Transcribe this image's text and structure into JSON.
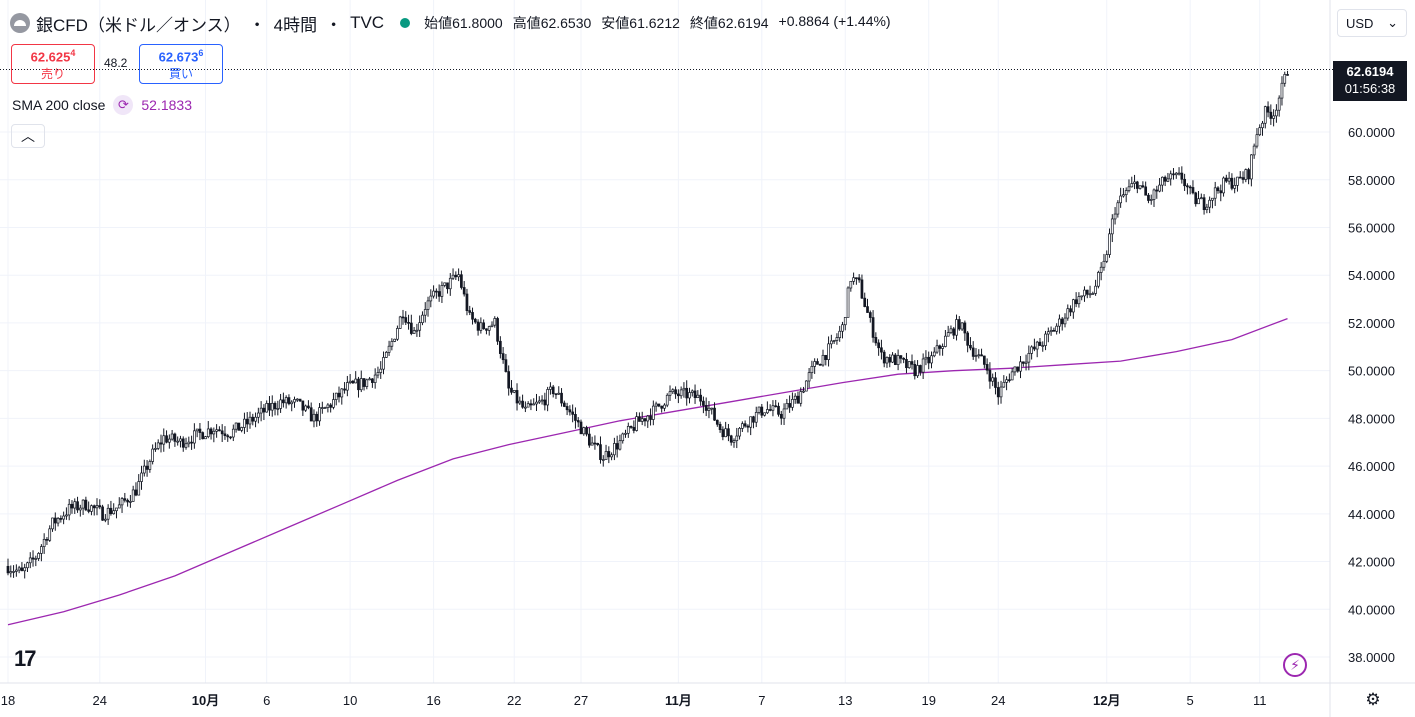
{
  "header": {
    "title": "銀CFD（米ドル／オンス）",
    "sep1": "・",
    "interval": "4時間",
    "sep2": "・",
    "source": "TVC",
    "ohlc": {
      "open_label": "始値",
      "open": "61.8000",
      "high_label": "高値",
      "high": "62.6530",
      "low_label": "安値",
      "low": "61.6212",
      "close_label": "終値",
      "close": "62.6194",
      "change": "+0.8864 (+1.44%)"
    }
  },
  "currency": {
    "label": "USD",
    "icon": "chevron-down-icon"
  },
  "trade": {
    "sell_price": "62.625",
    "sell_price_sup": "4",
    "sell_label": "売り",
    "spread": "48.2",
    "buy_price": "62.673",
    "buy_price_sup": "6",
    "buy_label": "買い"
  },
  "indicator": {
    "label": "SMA 200 close",
    "value": "52.1833",
    "icon": "refresh-icon"
  },
  "last_price": {
    "price": "62.6194",
    "countdown": "01:56:38"
  },
  "colors": {
    "candle": "#131722",
    "sma": "#9c27b0",
    "grid": "#f0f3fa",
    "sell": "#f23645",
    "buy": "#2962ff"
  },
  "chart_data": {
    "type": "candlestick",
    "y_ticks": [
      "38.0000",
      "40.0000",
      "42.0000",
      "44.0000",
      "46.0000",
      "48.0000",
      "50.0000",
      "52.0000",
      "54.0000",
      "56.0000",
      "58.0000",
      "60.0000"
    ],
    "ylim": [
      36.9,
      62.9
    ],
    "x_ticks": [
      {
        "label": "18",
        "x": 0
      },
      {
        "label": "24",
        "x": 33
      },
      {
        "label": "10月",
        "x": 71
      },
      {
        "label": "6",
        "x": 93
      },
      {
        "label": "10",
        "x": 123
      },
      {
        "label": "16",
        "x": 153
      },
      {
        "label": "22",
        "x": 182
      },
      {
        "label": "27",
        "x": 206
      },
      {
        "label": "11月",
        "x": 241
      },
      {
        "label": "7",
        "x": 271
      },
      {
        "label": "13",
        "x": 301
      },
      {
        "label": "19",
        "x": 331
      },
      {
        "label": "24",
        "x": 356
      },
      {
        "label": "12月",
        "x": 395
      },
      {
        "label": "5",
        "x": 425
      },
      {
        "label": "11",
        "x": 450
      }
    ],
    "x_range": [
      0,
      467
    ],
    "price_path": [
      [
        0,
        41.8
      ],
      [
        5,
        41.5
      ],
      [
        10,
        42.2
      ],
      [
        16,
        43.6
      ],
      [
        22,
        44.2
      ],
      [
        28,
        44.4
      ],
      [
        34,
        44.0
      ],
      [
        40,
        44.3
      ],
      [
        46,
        45.0
      ],
      [
        52,
        46.5
      ],
      [
        56,
        47.2
      ],
      [
        62,
        47.0
      ],
      [
        68,
        47.3
      ],
      [
        74,
        47.6
      ],
      [
        80,
        47.4
      ],
      [
        86,
        47.8
      ],
      [
        92,
        48.3
      ],
      [
        98,
        48.7
      ],
      [
        104,
        48.6
      ],
      [
        110,
        48.0
      ],
      [
        116,
        48.6
      ],
      [
        122,
        49.3
      ],
      [
        128,
        49.5
      ],
      [
        134,
        50.0
      ],
      [
        138,
        51.2
      ],
      [
        142,
        52.5
      ],
      [
        146,
        51.6
      ],
      [
        150,
        52.7
      ],
      [
        154,
        53.2
      ],
      [
        158,
        53.6
      ],
      [
        162,
        54.0
      ],
      [
        166,
        52.2
      ],
      [
        170,
        51.8
      ],
      [
        175,
        52.0
      ],
      [
        180,
        49.2
      ],
      [
        186,
        48.3
      ],
      [
        192,
        48.7
      ],
      [
        196,
        49.2
      ],
      [
        200,
        48.6
      ],
      [
        206,
        47.6
      ],
      [
        210,
        46.9
      ],
      [
        214,
        46.4
      ],
      [
        220,
        47.0
      ],
      [
        226,
        47.8
      ],
      [
        232,
        48.3
      ],
      [
        238,
        49.0
      ],
      [
        244,
        49.0
      ],
      [
        250,
        48.8
      ],
      [
        256,
        47.6
      ],
      [
        260,
        47.2
      ],
      [
        266,
        47.9
      ],
      [
        272,
        48.4
      ],
      [
        278,
        48.2
      ],
      [
        284,
        48.9
      ],
      [
        290,
        50.2
      ],
      [
        296,
        51.0
      ],
      [
        300,
        51.8
      ],
      [
        303,
        53.9
      ],
      [
        306,
        53.6
      ],
      [
        310,
        52.0
      ],
      [
        314,
        50.6
      ],
      [
        320,
        50.4
      ],
      [
        326,
        50.0
      ],
      [
        332,
        50.5
      ],
      [
        338,
        51.5
      ],
      [
        342,
        52.0
      ],
      [
        346,
        51.0
      ],
      [
        352,
        50.1
      ],
      [
        356,
        49.0
      ],
      [
        360,
        49.8
      ],
      [
        366,
        50.6
      ],
      [
        372,
        51.2
      ],
      [
        378,
        52.0
      ],
      [
        384,
        53.0
      ],
      [
        390,
        53.3
      ],
      [
        394,
        54.4
      ],
      [
        398,
        56.8
      ],
      [
        402,
        57.5
      ],
      [
        406,
        57.9
      ],
      [
        410,
        57.1
      ],
      [
        416,
        58.0
      ],
      [
        422,
        58.1
      ],
      [
        426,
        57.2
      ],
      [
        430,
        57.0
      ],
      [
        434,
        57.5
      ],
      [
        438,
        57.9
      ],
      [
        442,
        57.9
      ],
      [
        446,
        58.3
      ],
      [
        449,
        60.0
      ],
      [
        452,
        60.8
      ],
      [
        455,
        60.8
      ],
      [
        458,
        61.8
      ],
      [
        460,
        62.6
      ]
    ],
    "sma_path": [
      [
        0,
        39.35
      ],
      [
        20,
        39.9
      ],
      [
        40,
        40.6
      ],
      [
        60,
        41.4
      ],
      [
        80,
        42.4
      ],
      [
        100,
        43.4
      ],
      [
        120,
        44.4
      ],
      [
        140,
        45.4
      ],
      [
        160,
        46.3
      ],
      [
        180,
        46.9
      ],
      [
        200,
        47.4
      ],
      [
        220,
        47.9
      ],
      [
        240,
        48.3
      ],
      [
        260,
        48.7
      ],
      [
        280,
        49.1
      ],
      [
        300,
        49.5
      ],
      [
        320,
        49.85
      ],
      [
        340,
        50.0
      ],
      [
        360,
        50.1
      ],
      [
        380,
        50.25
      ],
      [
        400,
        50.4
      ],
      [
        420,
        50.8
      ],
      [
        440,
        51.3
      ],
      [
        460,
        52.18
      ]
    ]
  }
}
